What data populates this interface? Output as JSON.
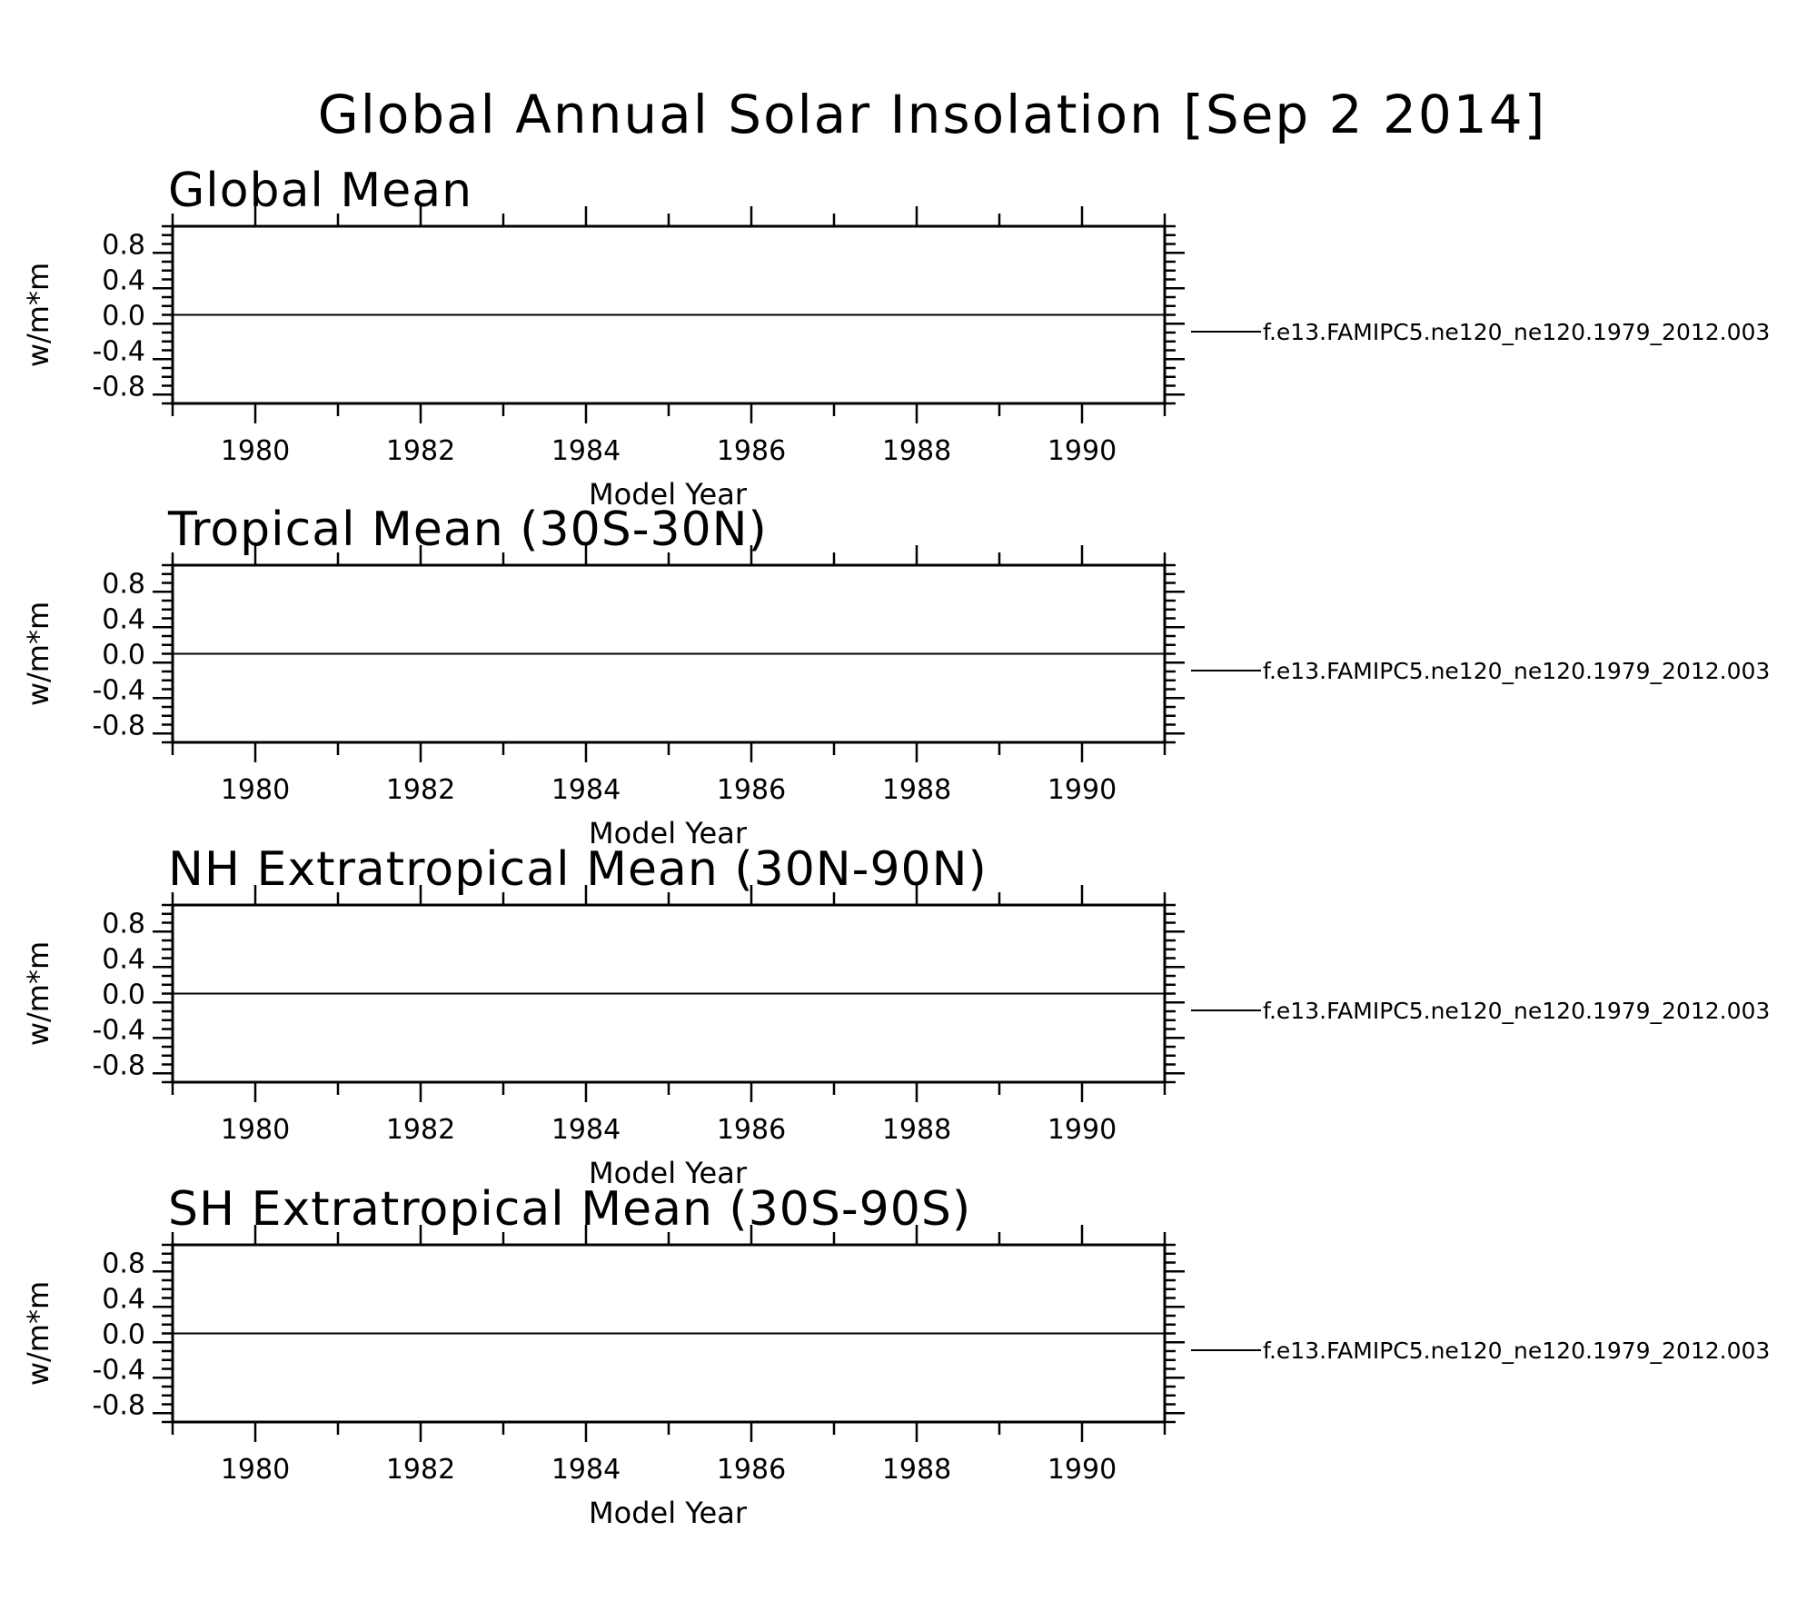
{
  "title": "Global Annual Solar Insolation [Sep  2 2014]",
  "chart_data": [
    {
      "type": "line",
      "title": "Global Mean",
      "xlabel": "Model Year",
      "ylabel": "w/m*m",
      "xlim": [
        1979,
        1991
      ],
      "ylim": [
        -1.0,
        1.0
      ],
      "x_ticks": [
        "1980",
        "1982",
        "1984",
        "1986",
        "1988",
        "1990"
      ],
      "y_ticks": [
        "0.8",
        "0.4",
        "0.0",
        "-0.4",
        "-0.8"
      ],
      "legend_position": "right",
      "series": [
        {
          "name": "f.e13.FAMIPC5.ne120_ne120.1979_2012.003",
          "x": [
            1979,
            1991
          ],
          "y": [
            0,
            0
          ],
          "color": "#000000"
        }
      ]
    },
    {
      "type": "line",
      "title": "Tropical Mean (30S-30N)",
      "xlabel": "Model Year",
      "ylabel": "w/m*m",
      "xlim": [
        1979,
        1991
      ],
      "ylim": [
        -1.0,
        1.0
      ],
      "x_ticks": [
        "1980",
        "1982",
        "1984",
        "1986",
        "1988",
        "1990"
      ],
      "y_ticks": [
        "0.8",
        "0.4",
        "0.0",
        "-0.4",
        "-0.8"
      ],
      "legend_position": "right",
      "series": [
        {
          "name": "f.e13.FAMIPC5.ne120_ne120.1979_2012.003",
          "x": [
            1979,
            1991
          ],
          "y": [
            0,
            0
          ],
          "color": "#000000"
        }
      ]
    },
    {
      "type": "line",
      "title": "NH Extratropical Mean (30N-90N)",
      "xlabel": "Model Year",
      "ylabel": "w/m*m",
      "xlim": [
        1979,
        1991
      ],
      "ylim": [
        -1.0,
        1.0
      ],
      "x_ticks": [
        "1980",
        "1982",
        "1984",
        "1986",
        "1988",
        "1990"
      ],
      "y_ticks": [
        "0.8",
        "0.4",
        "0.0",
        "-0.4",
        "-0.8"
      ],
      "legend_position": "right",
      "series": [
        {
          "name": "f.e13.FAMIPC5.ne120_ne120.1979_2012.003",
          "x": [
            1979,
            1991
          ],
          "y": [
            0,
            0
          ],
          "color": "#000000"
        }
      ]
    },
    {
      "type": "line",
      "title": "SH Extratropical Mean (30S-90S)",
      "xlabel": "Model Year",
      "ylabel": "w/m*m",
      "xlim": [
        1979,
        1991
      ],
      "ylim": [
        -1.0,
        1.0
      ],
      "x_ticks": [
        "1980",
        "1982",
        "1984",
        "1986",
        "1988",
        "1990"
      ],
      "y_ticks": [
        "0.8",
        "0.4",
        "0.0",
        "-0.4",
        "-0.8"
      ],
      "legend_position": "right",
      "series": [
        {
          "name": "f.e13.FAMIPC5.ne120_ne120.1979_2012.003",
          "x": [
            1979,
            1991
          ],
          "y": [
            0,
            0
          ],
          "color": "#000000"
        }
      ]
    }
  ]
}
